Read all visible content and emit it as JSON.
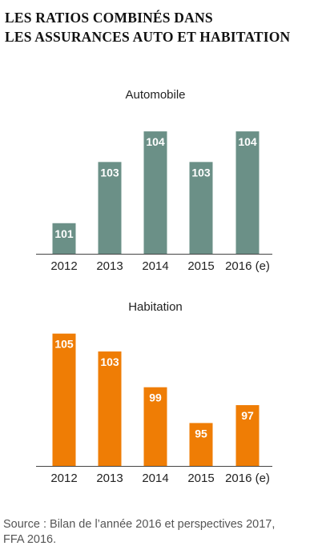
{
  "title": {
    "line1": "LES RATIOS COMBINÉS DANS",
    "line2": "LES ASSURANCES AUTO ET HABITATION"
  },
  "colors": {
    "automobile": "#6b9087",
    "habitation": "#ef7d05",
    "axis": "#444444",
    "value_label": "#ffffff"
  },
  "chart_data": [
    {
      "type": "bar",
      "title": "Automobile",
      "categories": [
        "2012",
        "2013",
        "2014",
        "2015",
        "2016 (e)"
      ],
      "values": [
        101,
        103,
        104,
        103,
        104
      ],
      "value_labels": [
        "101",
        "103",
        "104",
        "103",
        "104"
      ],
      "ylim": [
        100,
        104.5
      ],
      "grid": false,
      "legend": "none"
    },
    {
      "type": "bar",
      "title": "Habitation",
      "categories": [
        "2012",
        "2013",
        "2014",
        "2015",
        "2016 (e)"
      ],
      "values": [
        105,
        103,
        99,
        95,
        97
      ],
      "value_labels": [
        "105",
        "103",
        "99",
        "95",
        "97"
      ],
      "ylim": [
        90.2,
        105.6
      ],
      "grid": false,
      "legend": "none"
    }
  ],
  "source": {
    "line1": "Source : Bilan de l’année 2016 et perspectives 2017,",
    "line2": "FFA 2016."
  }
}
